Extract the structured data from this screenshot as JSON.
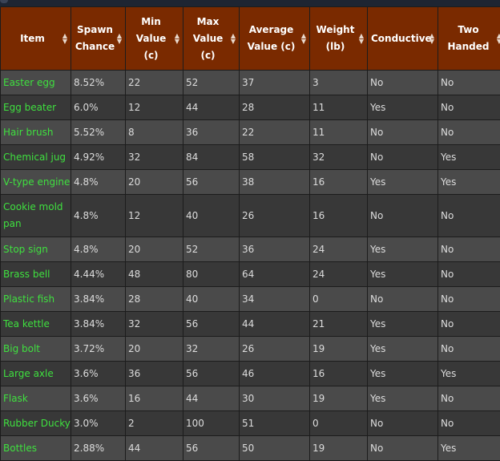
{
  "headers": [
    {
      "id": "item",
      "lines": [
        "Item"
      ]
    },
    {
      "id": "spawn",
      "lines": [
        "Spawn",
        "Chance"
      ]
    },
    {
      "id": "min",
      "lines": [
        "Min",
        "Value",
        "(c)"
      ]
    },
    {
      "id": "max",
      "lines": [
        "Max",
        "Value",
        "(c)"
      ]
    },
    {
      "id": "avg",
      "lines": [
        "Average",
        "Value (c)"
      ]
    },
    {
      "id": "weight",
      "lines": [
        "Weight",
        "(lb)"
      ]
    },
    {
      "id": "conductive",
      "lines": [
        "Conductive"
      ]
    },
    {
      "id": "twohanded",
      "lines": [
        "Two",
        "Handed"
      ]
    }
  ],
  "sort_icon": "sort-arrows-icon",
  "rows": [
    {
      "item": "Easter egg",
      "spawn": "8.52%",
      "min": "22",
      "max": "52",
      "avg": "37",
      "weight": "3",
      "conductive": "No",
      "two": "No"
    },
    {
      "item": "Egg beater",
      "spawn": "6.0%",
      "min": "12",
      "max": "44",
      "avg": "28",
      "weight": "11",
      "conductive": "Yes",
      "two": "No"
    },
    {
      "item": "Hair brush",
      "spawn": "5.52%",
      "min": "8",
      "max": "36",
      "avg": "22",
      "weight": "11",
      "conductive": "No",
      "two": "No"
    },
    {
      "item": "Chemical jug",
      "spawn": "4.92%",
      "min": "32",
      "max": "84",
      "avg": "58",
      "weight": "32",
      "conductive": "No",
      "two": "Yes"
    },
    {
      "item": "V-type engine",
      "spawn": "4.8%",
      "min": "20",
      "max": "56",
      "avg": "38",
      "weight": "16",
      "conductive": "Yes",
      "two": "Yes"
    },
    {
      "item": "Cookie mold pan",
      "spawn": "4.8%",
      "min": "12",
      "max": "40",
      "avg": "26",
      "weight": "16",
      "conductive": "No",
      "two": "No"
    },
    {
      "item": "Stop sign",
      "spawn": "4.8%",
      "min": "20",
      "max": "52",
      "avg": "36",
      "weight": "24",
      "conductive": "Yes",
      "two": "No"
    },
    {
      "item": "Brass bell",
      "spawn": "4.44%",
      "min": "48",
      "max": "80",
      "avg": "64",
      "weight": "24",
      "conductive": "Yes",
      "two": "No"
    },
    {
      "item": "Plastic fish",
      "spawn": "3.84%",
      "min": "28",
      "max": "40",
      "avg": "34",
      "weight": "0",
      "conductive": "No",
      "two": "No"
    },
    {
      "item": "Tea kettle",
      "spawn": "3.84%",
      "min": "32",
      "max": "56",
      "avg": "44",
      "weight": "21",
      "conductive": "Yes",
      "two": "No"
    },
    {
      "item": "Big bolt",
      "spawn": "3.72%",
      "min": "20",
      "max": "32",
      "avg": "26",
      "weight": "19",
      "conductive": "Yes",
      "two": "No"
    },
    {
      "item": "Large axle",
      "spawn": "3.6%",
      "min": "36",
      "max": "56",
      "avg": "46",
      "weight": "16",
      "conductive": "Yes",
      "two": "Yes"
    },
    {
      "item": "Flask",
      "spawn": "3.6%",
      "min": "16",
      "max": "44",
      "avg": "30",
      "weight": "19",
      "conductive": "Yes",
      "two": "No"
    },
    {
      "item": "Rubber Ducky",
      "spawn": "3.0%",
      "min": "2",
      "max": "100",
      "avg": "51",
      "weight": "0",
      "conductive": "No",
      "two": "No"
    },
    {
      "item": "Bottles",
      "spawn": "2.88%",
      "min": "44",
      "max": "56",
      "avg": "50",
      "weight": "19",
      "conductive": "No",
      "two": "Yes"
    }
  ],
  "colors": {
    "header_bg": "#7a2a00",
    "item_link": "#3fe03f",
    "row_odd": "#4a4a4a",
    "row_even": "#383838"
  }
}
